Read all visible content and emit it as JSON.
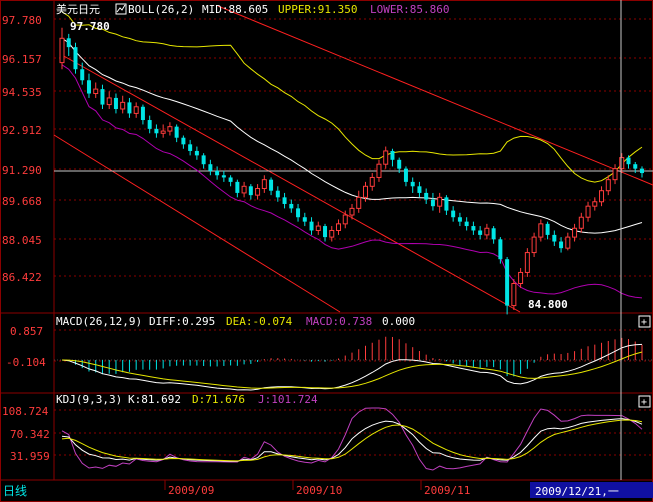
{
  "colors": {
    "frame": "#8b0000",
    "grid": "#8b0000",
    "up": "#ff3c3c",
    "down": "#00e5e5",
    "mid": "#ffffff",
    "upper": "#e6e600",
    "lower": "#b000b0",
    "channel": "#ff2020",
    "label_white": "#ffffff",
    "yellow": "#e6e600",
    "magenta": "#c040c0",
    "date_bg": "#1010a0"
  },
  "header": {
    "symbol": "美元日元",
    "boll_label": "BOLL(26,2)",
    "mid": "MID:88.605",
    "upper": "UPPER:91.350",
    "lower": "LOWER:85.860"
  },
  "macd_header": {
    "label": "MACD(26,12,9)",
    "diff": "DIFF:0.295",
    "dea": "DEA:-0.074",
    "macd": "MACD:0.738",
    "extra": "0.000"
  },
  "kdj_header": {
    "label": "KDJ(9,3,3)",
    "k": "K:81.692",
    "d": "D:71.676",
    "j": "J:101.724"
  },
  "price_axis": {
    "ticks": [
      "97.780",
      "96.157",
      "94.535",
      "92.912",
      "91.290",
      "89.668",
      "88.045",
      "86.422"
    ]
  },
  "macd_axis": {
    "ticks": [
      "0.857",
      "-0.104"
    ]
  },
  "kdj_axis": {
    "ticks": [
      "108.724",
      "70.342",
      "31.959"
    ]
  },
  "annotations": {
    "high": "97.780",
    "low": "84.800"
  },
  "footer": {
    "period": "日线",
    "months": [
      "2009/09",
      "2009/10",
      "2009/11"
    ],
    "cursor_date": "2009/12/21,一"
  },
  "chart_data": {
    "type": "candlestick",
    "title": "美元日元",
    "period": "daily",
    "y_range_price": [
      85.0,
      98.4
    ],
    "candles_open": [
      96.2,
      97.3,
      96.9,
      95.9,
      95.4,
      94.8,
      95.0,
      94.3,
      94.6,
      94.1,
      94.4,
      93.9,
      94.2,
      93.6,
      93.2,
      93.0,
      93.1,
      93.3,
      92.8,
      92.5,
      92.2,
      92.0,
      91.6,
      91.3,
      91.1,
      91.0,
      90.8,
      90.3,
      90.6,
      90.2,
      90.5,
      90.9,
      90.4,
      90.1,
      89.8,
      89.6,
      89.2,
      89.0,
      88.6,
      88.8,
      88.3,
      88.6,
      88.9,
      89.3,
      89.6,
      90.1,
      90.6,
      91.0,
      91.6,
      92.2,
      91.8,
      91.4,
      90.8,
      90.6,
      90.3,
      90.0,
      89.7,
      90.1,
      89.5,
      89.2,
      89.0,
      88.8,
      88.6,
      88.4,
      88.7,
      88.2,
      87.3,
      85.2,
      86.2,
      86.7,
      87.6,
      88.3,
      88.9,
      88.4,
      88.1,
      87.8,
      88.3,
      88.7,
      89.2,
      89.7,
      89.9,
      90.4,
      90.9,
      91.4,
      91.9,
      91.6,
      91.4
    ],
    "candles_close": [
      97.3,
      96.9,
      95.9,
      95.4,
      94.8,
      95.0,
      94.3,
      94.6,
      94.1,
      94.4,
      93.9,
      94.2,
      93.6,
      93.2,
      93.0,
      93.1,
      93.3,
      92.8,
      92.5,
      92.2,
      92.0,
      91.6,
      91.3,
      91.1,
      91.0,
      90.8,
      90.3,
      90.6,
      90.2,
      90.5,
      90.9,
      90.4,
      90.1,
      89.8,
      89.6,
      89.2,
      89.0,
      88.6,
      88.8,
      88.3,
      88.6,
      88.9,
      89.3,
      89.6,
      90.1,
      90.6,
      91.0,
      91.6,
      92.2,
      91.8,
      91.4,
      90.8,
      90.6,
      90.3,
      90.0,
      89.7,
      90.1,
      89.5,
      89.2,
      89.0,
      88.8,
      88.6,
      88.4,
      88.7,
      88.2,
      87.3,
      85.2,
      86.2,
      86.7,
      87.6,
      88.3,
      88.9,
      88.4,
      88.1,
      87.8,
      88.3,
      88.7,
      89.2,
      89.7,
      89.9,
      90.4,
      90.9,
      91.4,
      91.9,
      91.6,
      91.4,
      91.2
    ],
    "candles_high": [
      97.78,
      97.5,
      97.1,
      96.2,
      95.7,
      95.3,
      95.2,
      94.9,
      94.8,
      94.7,
      94.6,
      94.4,
      94.3,
      93.8,
      93.4,
      93.4,
      93.5,
      93.4,
      92.9,
      92.7,
      92.4,
      92.1,
      91.8,
      91.5,
      91.3,
      91.1,
      90.9,
      90.8,
      90.7,
      90.7,
      91.1,
      91.0,
      90.6,
      90.3,
      90.0,
      89.8,
      89.4,
      89.2,
      89.0,
      88.9,
      88.8,
      89.1,
      89.5,
      89.8,
      90.4,
      90.8,
      91.2,
      91.8,
      92.4,
      92.3,
      91.9,
      91.5,
      91.0,
      90.8,
      90.5,
      90.3,
      90.3,
      90.2,
      89.7,
      89.4,
      89.2,
      89.0,
      88.8,
      88.9,
      88.8,
      88.3,
      87.4,
      86.4,
      86.9,
      87.8,
      88.5,
      89.1,
      89.0,
      88.6,
      88.3,
      88.5,
      88.9,
      89.4,
      89.9,
      90.1,
      90.6,
      91.1,
      91.6,
      92.1,
      92.0,
      91.7,
      91.5
    ],
    "candles_low": [
      95.9,
      96.5,
      95.7,
      95.2,
      94.6,
      94.6,
      94.1,
      94.1,
      93.9,
      93.9,
      93.7,
      93.7,
      93.4,
      93.0,
      92.8,
      92.8,
      92.9,
      92.6,
      92.3,
      92.0,
      91.8,
      91.4,
      91.1,
      90.9,
      90.8,
      90.6,
      90.1,
      90.1,
      90.0,
      90.0,
      90.3,
      90.2,
      89.9,
      89.6,
      89.4,
      89.0,
      88.8,
      88.4,
      88.4,
      88.1,
      88.1,
      88.4,
      88.7,
      89.1,
      89.4,
      89.9,
      90.4,
      90.8,
      91.4,
      91.5,
      91.2,
      90.6,
      90.3,
      90.1,
      89.8,
      89.5,
      89.4,
      89.3,
      89.0,
      88.8,
      88.6,
      88.4,
      88.2,
      88.2,
      88.0,
      87.1,
      84.8,
      85.0,
      86.0,
      86.5,
      87.4,
      88.1,
      88.2,
      87.9,
      87.6,
      87.7,
      88.1,
      88.5,
      89.0,
      89.5,
      89.7,
      90.2,
      90.7,
      91.2,
      91.4,
      91.2,
      91.0
    ]
  }
}
